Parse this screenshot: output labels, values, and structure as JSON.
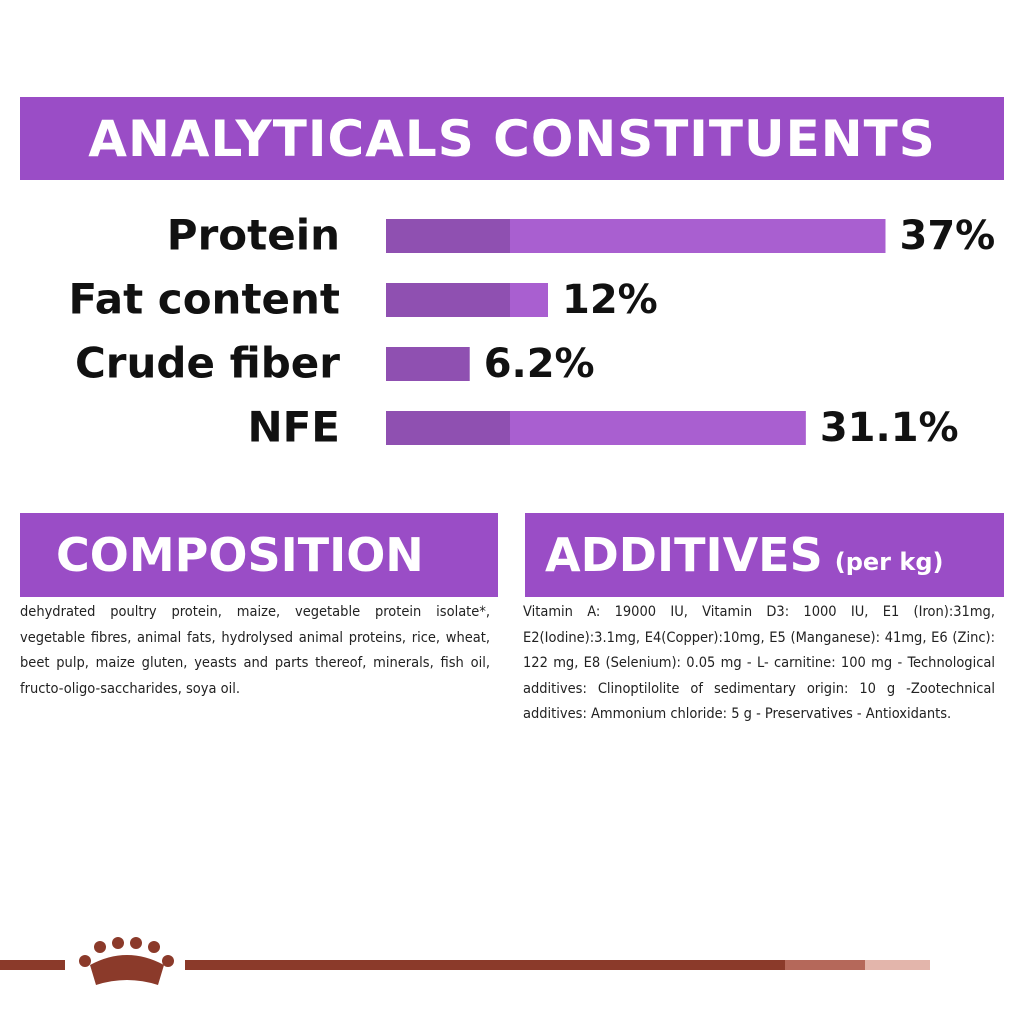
{
  "chart_data": {
    "type": "bar",
    "orientation": "horizontal",
    "title": "ANALYTICALS CONSTITUENTS",
    "categories": [
      "Protein",
      "Fat content",
      "Crude fiber",
      "NFE"
    ],
    "values": [
      37,
      12,
      6.2,
      31.1
    ],
    "value_labels": [
      "37%",
      "12%",
      "6.2%",
      "31.1%"
    ],
    "color": "#a95fd0"
  },
  "composition": {
    "title": "COMPOSITION",
    "text": "dehydrated poultry protein, maize, vegetable protein isolate*, vegetable fibres, animal fats, hydrolysed animal proteins, rice, wheat, beet pulp, maize gluten, yeasts and parts thereof, minerals, fish oil, fructo-oligo-saccharides, soya oil."
  },
  "additives": {
    "title": "ADDITIVES",
    "subtitle": "(per kg)",
    "text": "Vitamin A: 19000 IU, Vitamin D3: 1000 IU, E1 (Iron):31mg, E2(Iodine):3.1mg, E4(Copper):10mg, E5 (Manganese): 41mg, E6 (Zinc): 122 mg, E8 (Selenium): 0.05 mg - L- carnitine: 100 mg - Technological additives: Clinoptilolite of sedimentary origin: 10 g -Zootechnical additives: Ammonium chloride: 5 g - Preservatives - Antioxidants."
  }
}
